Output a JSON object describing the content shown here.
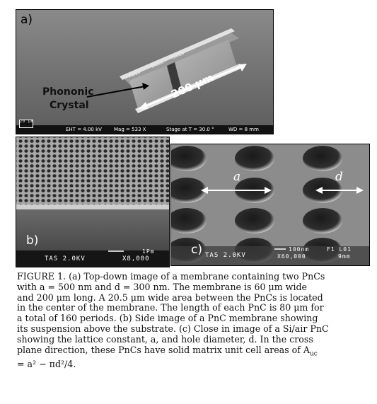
{
  "panel_a": {
    "letter": "a)",
    "label_line1": "Phononic",
    "label_line2": "Crystal",
    "length_label": "200 µm",
    "scale_bar": "20 µm",
    "engraved": [
      "A0L5",
      "D0L3",
      "S2L5"
    ],
    "sem_info": {
      "eht": "EHT = 4.00 kV",
      "mag": "Mag = 533 X",
      "stage": "Stage at T = 30.0 °",
      "wd": "WD = 8 mm"
    }
  },
  "panel_b": {
    "letter": "b)",
    "sem_left": "TAS 2.0KV",
    "sem_mag": "X8,000",
    "scale": "1Pm"
  },
  "panel_c": {
    "letter": "c)",
    "label_a": "a",
    "label_d": "d",
    "sem_left": "TAS 2.0KV",
    "sem_mag": "X60,000",
    "scale": "100nm",
    "f_l": "F1 L01",
    "wd": "9mm"
  },
  "caption": {
    "lines": [
      "FIGURE 1. (a) Top-down image of a membrane containing two PnCs",
      "with a = 500 nm and d = 300 nm. The membrane is 60 μm wide",
      "and 200 μm long. A 20.5 μm wide area between the PnCs is located",
      "in the center of the membrane. The length of each PnC is 80 μm for",
      "a total of 160 periods. (b) Side image of a PnC membrane showing",
      "its suspension above the substrate. (c) Close in image of a Si/air PnC",
      "showing the lattice constant, a, and hole diameter, d. In the cross",
      "plane direction, these PnCs have solid matrix unit cell areas of A",
      "= a² − πd²/4."
    ],
    "subscript_uc": "uc"
  }
}
